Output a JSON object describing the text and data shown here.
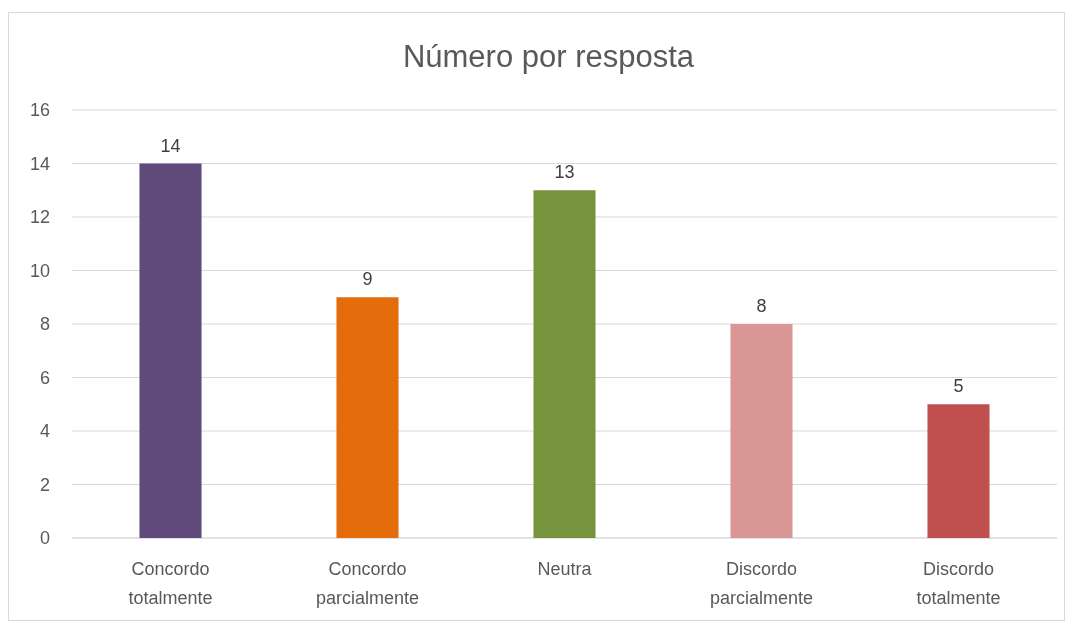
{
  "chart_data": {
    "type": "bar",
    "title": "Número por resposta",
    "categories": [
      "Concordo totalmente",
      "Concordo parcialmente",
      "Neutra",
      "Discordo parcialmente",
      "Discordo totalmente"
    ],
    "values": [
      14,
      9,
      13,
      8,
      5
    ],
    "colors": [
      "#604a7b",
      "#e46c0a",
      "#77933c",
      "#d99694",
      "#c0504d"
    ],
    "ylim": [
      0,
      16
    ],
    "yticks": [
      0,
      2,
      4,
      6,
      8,
      10,
      12,
      14,
      16
    ],
    "grid": "y",
    "data_labels": true
  }
}
